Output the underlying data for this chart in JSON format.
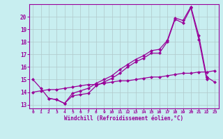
{
  "xlabel": "Windchill (Refroidissement éolien,°C)",
  "bg_color": "#c8eef0",
  "grid_color": "#b0c8ca",
  "line_color": "#990099",
  "xlim": [
    -0.5,
    23.5
  ],
  "ylim": [
    12.7,
    21.0
  ],
  "yticks": [
    13,
    14,
    15,
    16,
    17,
    18,
    19,
    20
  ],
  "xticks": [
    0,
    1,
    2,
    3,
    4,
    5,
    6,
    7,
    8,
    9,
    10,
    11,
    12,
    13,
    14,
    15,
    16,
    17,
    18,
    19,
    20,
    21,
    22,
    23
  ],
  "line1_x": [
    0,
    1,
    2,
    3,
    4,
    5,
    6,
    7,
    8,
    9,
    10,
    11,
    12,
    13,
    14,
    15,
    16,
    17,
    18,
    19,
    20,
    21,
    22
  ],
  "line1_y": [
    15.0,
    14.3,
    13.5,
    13.4,
    13.1,
    13.7,
    13.8,
    13.9,
    14.5,
    14.8,
    15.1,
    15.5,
    16.0,
    16.4,
    16.7,
    17.1,
    17.1,
    18.0,
    19.8,
    19.5,
    20.7,
    18.2,
    15.0
  ],
  "line2_x": [
    2,
    3,
    4,
    5,
    6,
    7,
    8,
    9,
    10,
    11,
    12,
    13,
    14,
    15,
    16,
    17,
    18,
    19,
    20,
    21,
    22,
    23
  ],
  "line2_y": [
    13.5,
    13.4,
    13.1,
    13.9,
    14.1,
    14.3,
    14.7,
    15.0,
    15.3,
    15.8,
    16.2,
    16.6,
    16.9,
    17.3,
    17.4,
    18.1,
    19.9,
    19.7,
    20.8,
    18.5,
    15.2,
    14.8
  ],
  "line3_x": [
    0,
    1,
    2,
    3,
    4,
    5,
    6,
    7,
    8,
    9,
    10,
    11,
    12,
    13,
    14,
    15,
    16,
    17,
    18,
    19,
    20,
    21,
    22,
    23
  ],
  "line3_y": [
    14.0,
    14.1,
    14.2,
    14.2,
    14.3,
    14.4,
    14.5,
    14.6,
    14.6,
    14.7,
    14.8,
    14.9,
    14.9,
    15.0,
    15.1,
    15.2,
    15.2,
    15.3,
    15.4,
    15.5,
    15.5,
    15.6,
    15.6,
    15.7
  ]
}
